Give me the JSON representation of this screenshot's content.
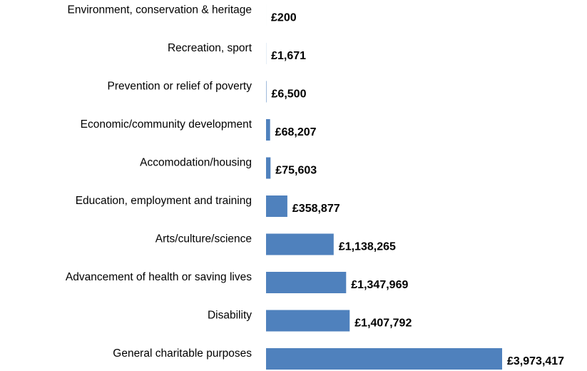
{
  "chart_data": {
    "type": "hbar",
    "categories": [
      "Environment, conservation & heritage",
      "Recreation, sport",
      "Prevention or relief of poverty",
      "Economic/community development",
      "Accomodation/housing",
      "Education, employment and training",
      "Arts/culture/science",
      "Advancement of health or saving lives",
      "Disability",
      "General charitable purposes"
    ],
    "values": [
      200,
      1671,
      6500,
      68207,
      75603,
      358877,
      1138265,
      1347969,
      1407792,
      3973417
    ],
    "value_labels": [
      "£200",
      "£1,671",
      "£6,500",
      "£68,207",
      "£75,603",
      "£358,877",
      "£1,138,265",
      "£1,347,969",
      "£1,407,792",
      "£3,973,417"
    ],
    "color": "#4f81bd"
  }
}
